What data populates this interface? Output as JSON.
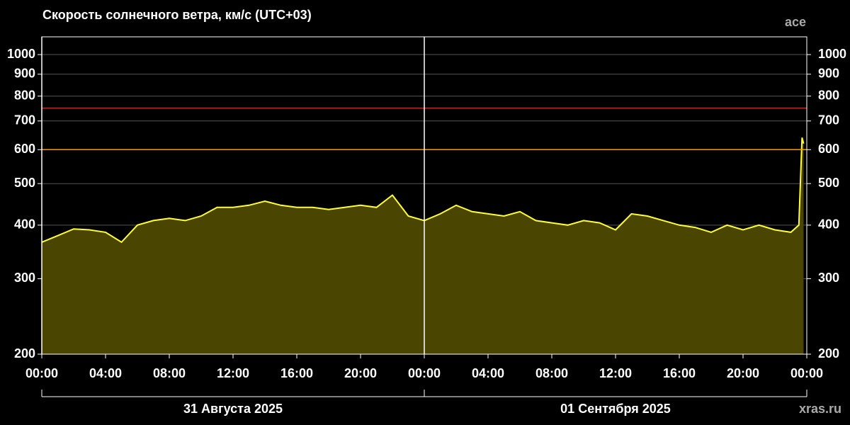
{
  "chart_data": {
    "type": "area",
    "title": "Скорость солнечного ветра, км/с (UTC+03)",
    "source": "ace",
    "watermark": "xras.ru",
    "log_scale": true,
    "grid": true,
    "xlim": [
      0,
      48
    ],
    "xticks": [
      {
        "value": 0,
        "label": "00:00"
      },
      {
        "value": 4,
        "label": "04:00"
      },
      {
        "value": 8,
        "label": "08:00"
      },
      {
        "value": 12,
        "label": "12:00"
      },
      {
        "value": 16,
        "label": "16:00"
      },
      {
        "value": 20,
        "label": "20:00"
      },
      {
        "value": 24,
        "label": "00:00"
      },
      {
        "value": 28,
        "label": "04:00"
      },
      {
        "value": 32,
        "label": "08:00"
      },
      {
        "value": 36,
        "label": "12:00"
      },
      {
        "value": 40,
        "label": "16:00"
      },
      {
        "value": 44,
        "label": "20:00"
      },
      {
        "value": 48,
        "label": "00:00"
      }
    ],
    "ylim": [
      200,
      1100
    ],
    "yticks": [
      200,
      300,
      400,
      500,
      600,
      700,
      800,
      900,
      1000
    ],
    "date_groups": [
      {
        "label": "31 Августа 2025",
        "range": [
          0,
          24
        ]
      },
      {
        "label": "01 Сентября 2025",
        "range": [
          24,
          48
        ]
      }
    ],
    "thresholds": [
      {
        "value": 600,
        "color": "#ff9900"
      },
      {
        "value": 750,
        "color": "#e02020"
      }
    ],
    "series": [
      {
        "color": "#ffff33",
        "fill": "#4a4500",
        "x": [
          0,
          1,
          2,
          3,
          4,
          5,
          6,
          7,
          8,
          9,
          10,
          11,
          12,
          13,
          14,
          15,
          16,
          17,
          18,
          19,
          20,
          21,
          22,
          23,
          24,
          25,
          26,
          27,
          28,
          29,
          30,
          31,
          32,
          33,
          34,
          35,
          36,
          37,
          38,
          39,
          40,
          41,
          42,
          43,
          44,
          45,
          46,
          47,
          47.5,
          47.7,
          47.8
        ],
        "values": [
          365,
          378,
          392,
          390,
          385,
          365,
          400,
          410,
          415,
          410,
          420,
          440,
          440,
          445,
          455,
          445,
          440,
          440,
          435,
          440,
          445,
          440,
          470,
          420,
          410,
          425,
          445,
          430,
          425,
          420,
          430,
          410,
          405,
          400,
          410,
          405,
          390,
          425,
          420,
          410,
          400,
          395,
          385,
          400,
          390,
          400,
          390,
          385,
          400,
          640,
          620
        ]
      }
    ]
  }
}
